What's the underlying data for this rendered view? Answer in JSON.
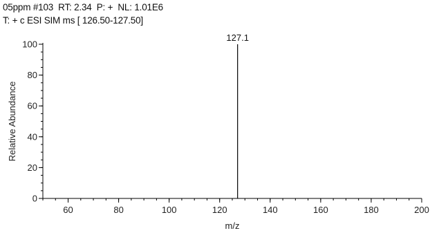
{
  "header": {
    "line1": "05ppm #103  RT: 2.34  P: +  NL: 1.01E6",
    "line2": "T: + c ESI SIM ms [ 126.50-127.50]"
  },
  "chart_data": {
    "type": "bar",
    "title": "",
    "xlabel": "m/z",
    "ylabel": "Relative Abundance",
    "xlim": [
      50,
      200
    ],
    "ylim": [
      0,
      100
    ],
    "x_ticks": [
      60,
      80,
      100,
      120,
      140,
      160,
      180,
      200
    ],
    "y_ticks": [
      0,
      20,
      40,
      60,
      80,
      100
    ],
    "peaks": [
      {
        "mz": 127.1,
        "abundance": 100,
        "label": "127.1"
      }
    ],
    "grid": false,
    "colors": {
      "axis": "#000000",
      "peak": "#000000"
    }
  }
}
